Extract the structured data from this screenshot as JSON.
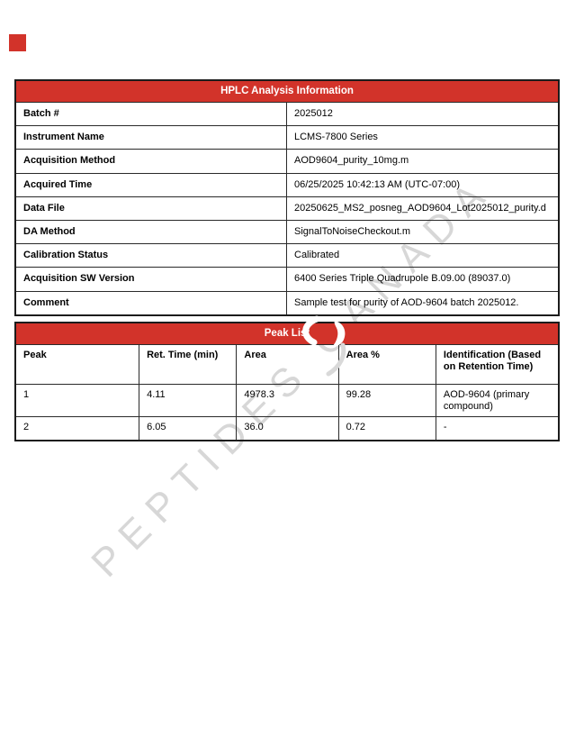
{
  "colors": {
    "accent": "#d2332a",
    "table_border": "#1c1c1c",
    "watermark": "#d7d7d7",
    "header_text": "#ffffff"
  },
  "corner_mark": {
    "name": "red-square"
  },
  "watermark": {
    "text": "PEPTIDES CANADA"
  },
  "hplc_table": {
    "title": "HPLC Analysis Information",
    "rows": [
      {
        "label": "Batch #",
        "value": "2025012"
      },
      {
        "label": "Instrument Name",
        "value": "LCMS-7800 Series"
      },
      {
        "label": "Acquisition Method",
        "value": "AOD9604_purity_10mg.m"
      },
      {
        "label": "Acquired Time",
        "value": "06/25/2025 10:42:13 AM (UTC-07:00)"
      },
      {
        "label": "Data File",
        "value": "20250625_MS2_posneg_AOD9604_Lot2025012_purity.d"
      },
      {
        "label": "DA Method",
        "value": "SignalToNoiseCheckout.m"
      },
      {
        "label": "Calibration Status",
        "value": "Calibrated"
      },
      {
        "label": "Acquisition SW Version",
        "value": "6400 Series Triple Quadrupole B.09.00 (89037.0)"
      },
      {
        "label": "Comment",
        "value": "Sample test for purity of AOD-9604 batch 2025012."
      }
    ]
  },
  "peak_table": {
    "title": "Peak List",
    "columns": [
      "Peak",
      "Ret. Time (min)",
      "Area",
      "Area %",
      "Identification (Based on Retention Time)"
    ],
    "rows": [
      [
        "1",
        "4.11",
        "4978.3",
        "99.28",
        "AOD-9604 (primary compound)"
      ],
      [
        "2",
        "6.05",
        "36.0",
        "0.72",
        "-"
      ]
    ]
  }
}
